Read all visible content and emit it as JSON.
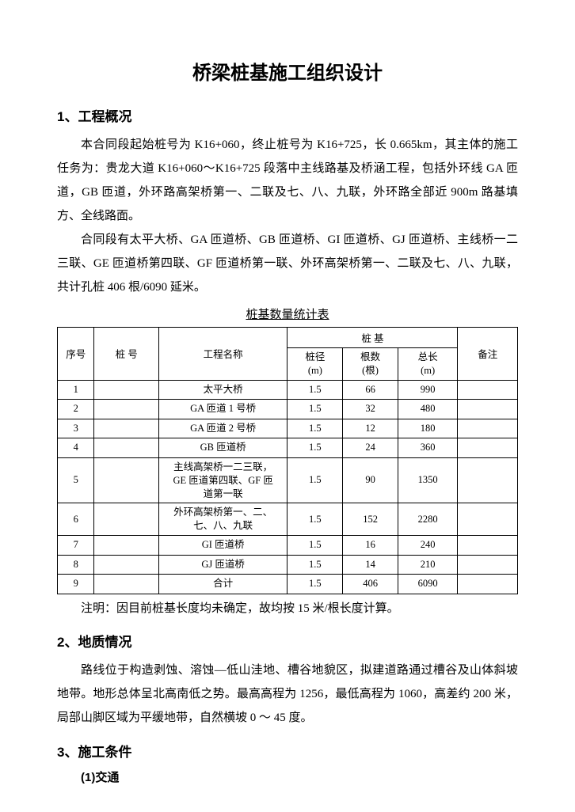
{
  "title": "桥梁桩基施工组织设计",
  "sections": {
    "s1": {
      "heading": "1、工程概况",
      "p1": "本合同段起始桩号为 K16+060，终止桩号为 K16+725，长 0.665km，其主体的施工任务为：贵龙大道 K16+060～K16+725 段落中主线路基及桥涵工程，包括外环线 GA 匝道，GB 匝道，外环路高架桥第一、二联及七、八、九联，外环路全部近 900m 路基填方、全线路面。",
      "p2": "合同段有太平大桥、GA 匝道桥、GB 匝道桥、GI 匝道桥、GJ 匝道桥、主线桥一二三联、GE 匝道桥第四联、GF 匝道桥第一联、外环高架桥第一、二联及七、八、九联，共计孔桩 406 根/6090 延米。"
    },
    "s2": {
      "heading": "2、地质情况",
      "p1": "路线位于构造剥蚀、溶蚀—低山洼地、槽谷地貌区，拟建道路通过槽谷及山体斜坡地带。地形总体呈北高南低之势。最高高程为 1256，最低高程为 1060，高差约 200 米，局部山脚区域为平缓地带，自然横坡 0 ～ 45 度。"
    },
    "s3": {
      "heading": "3、施工条件",
      "sub1": "(1)交通"
    }
  },
  "table": {
    "caption": "桩基数量统计表",
    "header": {
      "seq": "序号",
      "stake": "桩 号",
      "name": "工程名称",
      "group": "桩 基",
      "dia": "桩径\n(m)",
      "count": "根数\n(根)",
      "len": "总长\n(m)",
      "remark": "备注"
    },
    "rows": [
      {
        "seq": "1",
        "stake": "",
        "name": "太平大桥",
        "dia": "1.5",
        "count": "66",
        "len": "990",
        "remark": ""
      },
      {
        "seq": "2",
        "stake": "",
        "name": "GA 匝道 1 号桥",
        "dia": "1.5",
        "count": "32",
        "len": "480",
        "remark": ""
      },
      {
        "seq": "3",
        "stake": "",
        "name": "GA 匝道 2 号桥",
        "dia": "1.5",
        "count": "12",
        "len": "180",
        "remark": ""
      },
      {
        "seq": "4",
        "stake": "",
        "name": "GB 匝道桥",
        "dia": "1.5",
        "count": "24",
        "len": "360",
        "remark": ""
      },
      {
        "seq": "5",
        "stake": "",
        "name": "主线高架桥一二三联，\nGE 匝道第四联、GF 匝\n道第一联",
        "dia": "1.5",
        "count": "90",
        "len": "1350",
        "remark": ""
      },
      {
        "seq": "6",
        "stake": "",
        "name": "外环高架桥第一、二、\n七、八、九联",
        "dia": "1.5",
        "count": "152",
        "len": "2280",
        "remark": ""
      },
      {
        "seq": "7",
        "stake": "",
        "name": "GI 匝道桥",
        "dia": "1.5",
        "count": "16",
        "len": "240",
        "remark": ""
      },
      {
        "seq": "8",
        "stake": "",
        "name": "GJ 匝道桥",
        "dia": "1.5",
        "count": "14",
        "len": "210",
        "remark": ""
      },
      {
        "seq": "9",
        "stake": "",
        "name": "合计",
        "dia": "1.5",
        "count": "406",
        "len": "6090",
        "remark": ""
      }
    ],
    "note": "注明：因目前桩基长度均未确定，故均按 15 米/根长度计算。"
  }
}
